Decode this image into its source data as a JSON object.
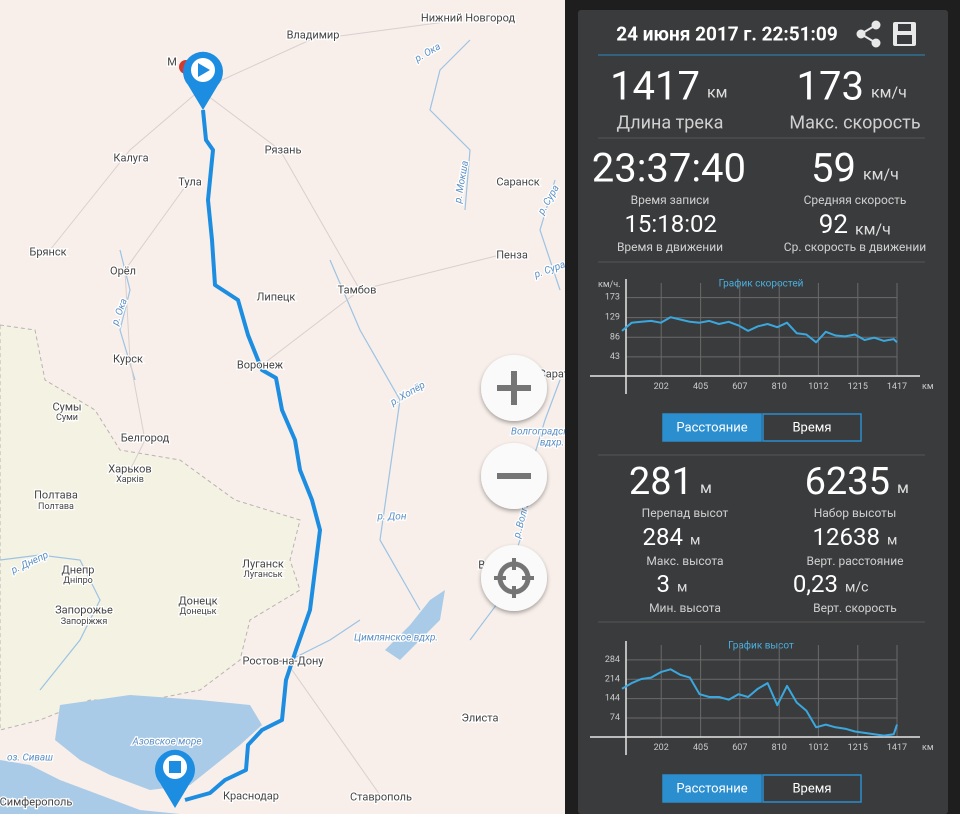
{
  "header": {
    "datetime": "24 июня 2017 г. 22:51:09"
  },
  "track_stats": [
    {
      "value": "1417",
      "unit": "км",
      "label": "Длина трека"
    },
    {
      "value": "173",
      "unit": "км/ч",
      "label": "Макс. скорость"
    },
    {
      "value": "23:37:40",
      "label": "Время записи"
    },
    {
      "value": "59",
      "unit": "км/ч",
      "label": "Средняя скорость"
    },
    {
      "value": "15:18:02",
      "label": "Время в движении"
    },
    {
      "value": "92",
      "unit": "км/ч",
      "label": "Ср. скорость в движении"
    }
  ],
  "speed_chart": {
    "type": "line",
    "title": "График скоростей",
    "y_label": "км/ч.",
    "x_label": "км",
    "color": "#3aa8de",
    "grid": true,
    "x": [
      0,
      50,
      100,
      150,
      200,
      250,
      300,
      350,
      400,
      450,
      500,
      550,
      600,
      650,
      700,
      750,
      800,
      850,
      900,
      950,
      1000,
      1050,
      1100,
      1150,
      1200,
      1250,
      1300,
      1350,
      1400,
      1417
    ],
    "values": [
      100,
      118,
      120,
      122,
      118,
      130,
      125,
      120,
      118,
      122,
      115,
      120,
      112,
      100,
      110,
      115,
      108,
      118,
      95,
      92,
      75,
      98,
      90,
      88,
      92,
      80,
      85,
      78,
      82,
      75
    ],
    "xlim": [
      0,
      1417
    ],
    "ylim": [
      0,
      205
    ],
    "xticks": [
      202,
      405,
      607,
      810,
      1012,
      1215,
      1417
    ],
    "yticks": [
      43,
      86,
      129,
      173
    ]
  },
  "speed_chart_tabs": [
    "Расстояние",
    "Время"
  ],
  "elevation_stats": [
    {
      "value": "281",
      "unit": "м",
      "label": "Перепад высот"
    },
    {
      "value": "6235",
      "unit": "м",
      "label": "Набор высоты"
    },
    {
      "value": "284",
      "unit": "м",
      "label": "Макс. высота"
    },
    {
      "value": "12638",
      "unit": "м",
      "label": "Верт. расстояние"
    },
    {
      "value": "3",
      "unit": "м",
      "label": "Мин. высота"
    },
    {
      "value": "0,23",
      "unit": "м/с",
      "label": "Верт. скорость"
    }
  ],
  "elevation_chart": {
    "type": "line",
    "title": "График высот",
    "x_label": "км",
    "color": "#3aa8de",
    "grid": true,
    "x": [
      0,
      50,
      100,
      150,
      200,
      250,
      300,
      350,
      400,
      450,
      500,
      550,
      600,
      650,
      700,
      750,
      800,
      850,
      900,
      950,
      1000,
      1050,
      1100,
      1150,
      1200,
      1250,
      1300,
      1350,
      1400,
      1417
    ],
    "values": [
      180,
      200,
      215,
      220,
      240,
      250,
      230,
      220,
      160,
      150,
      150,
      140,
      160,
      150,
      180,
      200,
      120,
      190,
      130,
      100,
      40,
      50,
      40,
      35,
      25,
      20,
      15,
      10,
      15,
      50
    ],
    "xlim": [
      0,
      1417
    ],
    "ylim": [
      0,
      338
    ],
    "xticks": [
      202,
      405,
      607,
      810,
      1012,
      1215,
      1417
    ],
    "yticks": [
      74,
      144,
      214,
      284
    ]
  },
  "elevation_chart_tabs": [
    "Расстояние",
    "Время"
  ],
  "map": {
    "labels": [
      "Нижний Новгород",
      "Владимир",
      "р. Ока",
      "М",
      "Калуга",
      "Рязань",
      "Тула",
      "р. Мокша",
      "Саранск",
      "р. Сура",
      "Брянск",
      "Пенза",
      "р. Сура",
      "Орёл",
      "р. Ока",
      "Липецк",
      "Тамбов",
      "Курск",
      "Воронеж",
      "Саратов",
      "р. Хопёр",
      "Сумы",
      "Суми",
      "Белгород",
      "Волгоградское",
      "вдхр.",
      "Харьков",
      "Харків",
      "Полтава",
      "Полтава",
      "р. Дон",
      "р. Волга",
      "р. Днепр",
      "Днепр",
      "Дніпро",
      "Луганск",
      "Луганськ",
      "Волгоград",
      "Запорожье",
      "Запоріжжя",
      "Донецк",
      "Донецьк",
      "Цимлянское вдхр.",
      "Ростов-на-Дону",
      "Элиста",
      "Азовское море",
      "оз. Сиваш",
      "Симферополь",
      "Краснодар",
      "Ставрополь"
    ]
  }
}
